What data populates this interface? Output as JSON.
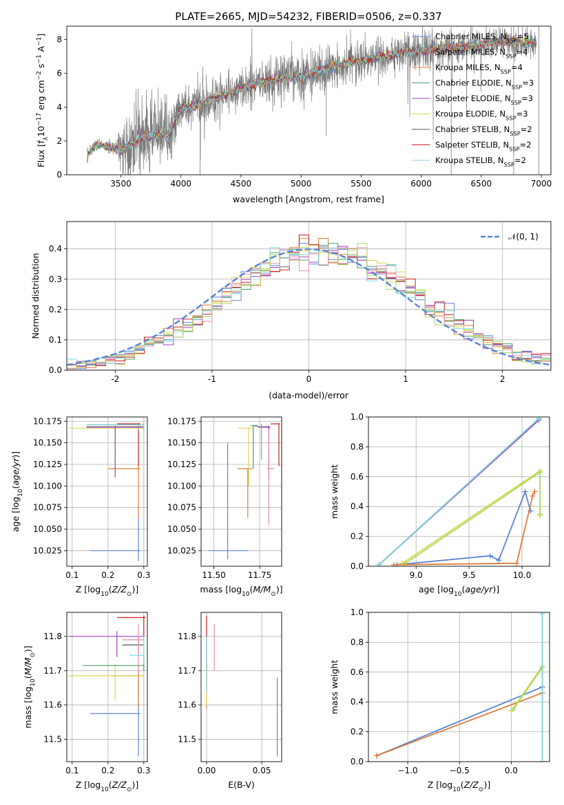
{
  "title": "PLATE=2665, MJD=54232, FIBERID=0506, z=0.337",
  "colors": {
    "chabrier_miles": "#5b84d6",
    "salpeter_miles": "#999999",
    "kroupa_miles": "#e07b39",
    "chabrier_elodie": "#4c9a67",
    "salpeter_elodie": "#9b3fbf",
    "kroupa_elodie": "#d9d94a",
    "chabrier_stelib": "#555555",
    "salpeter_stelib": "#c81e1e",
    "kroupa_stelib": "#80d8e0",
    "pink": "#e88ab0",
    "lime": "#a8d86a",
    "orange": "#e07b39",
    "spectrum_gray": "#7a7a7a",
    "gauss": "#5b84d6"
  },
  "chart_data": [
    {
      "id": "spectrum",
      "type": "line",
      "xlabel": "wavelength [Angstrom, rest frame]",
      "ylabel": "Flux [f_λ 10^-17 erg cm^-2 s^-1 A^-1]",
      "xlim": [
        3050,
        7080
      ],
      "ylim": [
        0,
        8.8
      ],
      "xticks": [
        3500,
        4000,
        4500,
        5000,
        5500,
        6000,
        6500,
        7000
      ],
      "yticks": [
        0,
        2,
        4,
        6,
        8
      ],
      "x_start": 3220,
      "x_end": 6960,
      "legend_position": "top-right",
      "legend": [
        {
          "key": "chabrier_miles",
          "label": "Chabrier MILES, N_SSP=5"
        },
        {
          "key": "salpeter_miles",
          "label": "Salpeter MILES, N_SSP=4"
        },
        {
          "key": "kroupa_miles",
          "label": "Kroupa MILES, N_SSP=4"
        },
        {
          "key": "chabrier_elodie",
          "label": "Chabrier ELODIE, N_SSP=3"
        },
        {
          "key": "salpeter_elodie",
          "label": "Salpeter ELODIE, N_SSP=3"
        },
        {
          "key": "kroupa_elodie",
          "label": "Kroupa ELODIE, N_SSP=3"
        },
        {
          "key": "chabrier_stelib",
          "label": "Chabrier STELIB, N_SSP=2"
        },
        {
          "key": "salpeter_stelib",
          "label": "Salpeter STELIB, N_SSP=2"
        },
        {
          "key": "kroupa_stelib",
          "label": "Kroupa STELIB, N_SSP=2"
        }
      ],
      "continuum": [
        [
          3220,
          1.2
        ],
        [
          3300,
          1.8
        ],
        [
          3500,
          1.5
        ],
        [
          3700,
          2.3
        ],
        [
          3900,
          2.4
        ],
        [
          4000,
          3.9
        ],
        [
          4200,
          4.3
        ],
        [
          4500,
          5.1
        ],
        [
          4800,
          5.7
        ],
        [
          5000,
          5.8
        ],
        [
          5300,
          6.5
        ],
        [
          5600,
          6.9
        ],
        [
          5900,
          7.3
        ],
        [
          6200,
          7.5
        ],
        [
          6500,
          7.7
        ],
        [
          6700,
          7.9
        ],
        [
          6960,
          7.8
        ]
      ],
      "noise_amp": [
        [
          3220,
          0.1
        ],
        [
          3450,
          0.2
        ],
        [
          3550,
          1.2
        ],
        [
          3900,
          1.1
        ],
        [
          4000,
          0.7
        ],
        [
          4500,
          0.6
        ],
        [
          5000,
          0.7
        ],
        [
          5500,
          0.55
        ],
        [
          6000,
          0.5
        ],
        [
          6960,
          0.45
        ]
      ]
    },
    {
      "id": "residuals",
      "type": "step",
      "xlabel": "(data-model)/error",
      "ylabel": "Normed distribution",
      "xlim": [
        -2.5,
        2.5
      ],
      "ylim": [
        0,
        0.49
      ],
      "xticks": [
        -2,
        -1,
        0,
        1,
        2
      ],
      "yticks": [
        0.0,
        0.1,
        0.2,
        0.3,
        0.4
      ],
      "ytick_labels": [
        "0.0",
        "0.1",
        "0.2",
        "0.3",
        "0.4"
      ],
      "bin_width": 0.1,
      "legend_position": "top-right",
      "gauss_label": "𝒩(0, 1)",
      "series_keys": [
        "chabrier_miles",
        "kroupa_miles",
        "chabrier_elodie",
        "salpeter_elodie",
        "kroupa_elodie",
        "salpeter_stelib",
        "kroupa_stelib",
        "pink",
        "lime"
      ]
    },
    {
      "id": "age_vs_Z",
      "type": "errorbar",
      "xlabel": "Z [log10(Z/Z_sun)]",
      "ylabel": "age  [log10(age/yr)]",
      "xlim": [
        0.085,
        0.31
      ],
      "ylim": [
        10.007,
        10.18
      ],
      "xticks": [
        0.1,
        0.2,
        0.3
      ],
      "xtick_labels": [
        "0.1",
        "0.2",
        "0.3"
      ],
      "yticks": [
        10.025,
        10.05,
        10.075,
        10.1,
        10.125,
        10.15,
        10.175
      ],
      "ytick_labels": [
        "10.025",
        "10.050",
        "10.075",
        "10.100",
        "10.125",
        "10.150",
        "10.175"
      ],
      "points": [
        {
          "c": "chabrier_miles",
          "x": 0.285,
          "y": 10.025,
          "xl": 0.15,
          "xh": 0.29,
          "yl": 10.013,
          "yh": 10.063
        },
        {
          "c": "kroupa_miles",
          "x": 0.285,
          "y": 10.12,
          "xl": 0.2,
          "xh": 0.29,
          "yl": 10.063,
          "yh": 10.132
        },
        {
          "c": "salpeter_stelib",
          "x": 0.285,
          "y": 10.172,
          "xl": 0.225,
          "xh": 0.29,
          "yl": 10.123,
          "yh": 10.173
        },
        {
          "c": "salpeter_miles",
          "x": 0.285,
          "y": 10.169,
          "xl": 0.14,
          "xh": 0.3,
          "yl": 10.165,
          "yh": 10.172
        },
        {
          "c": "kroupa_elodie",
          "x": 0.22,
          "y": 10.167,
          "xl": 0.09,
          "xh": 0.3,
          "yl": 10.115,
          "yh": 10.17
        },
        {
          "c": "chabrier_elodie",
          "x": 0.3,
          "y": 10.171,
          "xl": 0.14,
          "xh": 0.3,
          "yl": 10.165,
          "yh": 10.173
        },
        {
          "c": "salpeter_elodie",
          "x": 0.22,
          "y": 10.168,
          "xl": 0.14,
          "xh": 0.3,
          "yl": 10.11,
          "yh": 10.17
        },
        {
          "c": "kroupa_stelib",
          "x": 0.3,
          "y": 10.171,
          "xl": 0.14,
          "xh": 0.3,
          "yl": 10.165,
          "yh": 10.174
        }
      ]
    },
    {
      "id": "age_vs_mass",
      "type": "errorbar",
      "xlabel": "mass [log10(M/M_sun)]",
      "xlim": [
        11.43,
        11.87
      ],
      "ylim": [
        10.007,
        10.18
      ],
      "xticks": [
        11.5,
        11.75
      ],
      "xtick_labels": [
        "11.50",
        "11.75"
      ],
      "yticks": [
        10.025,
        10.05,
        10.075,
        10.1,
        10.125,
        10.15,
        10.175
      ],
      "ytick_labels": [
        "10.025",
        "10.050",
        "10.075",
        "10.100",
        "10.125",
        "10.150",
        "10.175"
      ],
      "points": [
        {
          "c": "chabrier_miles",
          "x": 11.575,
          "y": 10.025,
          "xl": 11.47,
          "xh": 11.685,
          "yl": 10.015,
          "yh": 10.15
        },
        {
          "c": "kroupa_miles",
          "x": 11.685,
          "y": 10.12,
          "xl": 11.63,
          "xh": 11.71,
          "yl": 10.063,
          "yh": 10.12
        },
        {
          "c": "kroupa_elodie",
          "x": 11.69,
          "y": 10.167,
          "xl": 11.63,
          "xh": 11.715,
          "yl": 10.1,
          "yh": 10.168
        },
        {
          "c": "chabrier_elodie",
          "x": 11.715,
          "y": 10.17,
          "xl": 11.7,
          "xh": 11.74,
          "yl": 10.12,
          "yh": 10.17
        },
        {
          "c": "salpeter_elodie",
          "x": 11.8,
          "y": 10.168,
          "xl": 11.74,
          "xh": 11.81,
          "yl": 10.11,
          "yh": 10.17
        },
        {
          "c": "pink",
          "x": 11.8,
          "y": 10.12,
          "xl": 11.79,
          "xh": 11.83,
          "yl": 10.055,
          "yh": 10.165
        },
        {
          "c": "salpeter_stelib",
          "x": 11.855,
          "y": 10.172,
          "xl": 11.81,
          "xh": 11.86,
          "yl": 10.123,
          "yh": 10.173
        },
        {
          "c": "salpeter_miles",
          "x": 11.76,
          "y": 10.169,
          "xl": 11.72,
          "xh": 11.8,
          "yl": 10.13,
          "yh": 10.172
        }
      ]
    },
    {
      "id": "mass_weight_vs_age",
      "type": "line",
      "xlabel": "age  [log10(age/yr)]",
      "ylabel": "mass weight",
      "xlim": [
        8.55,
        10.26
      ],
      "ylim": [
        0,
        1
      ],
      "xticks": [
        9.0,
        9.5,
        10.0
      ],
      "xtick_labels": [
        "9.0",
        "9.5",
        "10.0"
      ],
      "yticks": [
        0,
        0.2,
        0.4,
        0.6,
        0.8,
        1.0
      ],
      "ytick_labels": [
        "0.0",
        "0.2",
        "0.4",
        "0.6",
        "0.8",
        "1.0"
      ],
      "series": [
        {
          "c": "chabrier_miles",
          "x": [
            8.82,
            9.7,
            9.78,
            10.03,
            10.08
          ],
          "y": [
            0.01,
            0.07,
            0.04,
            0.5,
            0.37
          ]
        },
        {
          "c": "kroupa_miles",
          "x": [
            8.79,
            9.95,
            10.1,
            10.12
          ],
          "y": [
            0.01,
            0.02,
            0.47,
            0.5
          ]
        },
        {
          "c": "salpeter_miles",
          "x": [
            8.65,
            10.16,
            10.16
          ],
          "y": [
            0.01,
            0.99,
            0.99
          ]
        },
        {
          "c": "chabrier_elodie",
          "x": [
            8.65,
            10.16
          ],
          "y": [
            0.01,
            0.99
          ]
        },
        {
          "c": "salpeter_elodie",
          "x": [
            8.65,
            10.16
          ],
          "y": [
            0.01,
            0.98
          ]
        },
        {
          "c": "kroupa_elodie",
          "x": [
            8.87,
            10.17,
            10.17
          ],
          "y": [
            0.02,
            0.64,
            0.34
          ]
        },
        {
          "c": "lime",
          "x": [
            8.9,
            10.17,
            10.17
          ],
          "y": [
            0.02,
            0.63,
            0.35
          ]
        },
        {
          "c": "kroupa_stelib",
          "x": [
            8.65,
            10.16
          ],
          "y": [
            0.01,
            0.99
          ]
        }
      ]
    },
    {
      "id": "mass_vs_Z",
      "type": "errorbar",
      "xlabel": "Z [log10(Z/Z_sun)]",
      "ylabel": "mass [log10(M/M_sun)]",
      "xlim": [
        0.085,
        0.31
      ],
      "ylim": [
        11.435,
        11.87
      ],
      "xticks": [
        0.1,
        0.2,
        0.3
      ],
      "xtick_labels": [
        "0.1",
        "0.2",
        "0.3"
      ],
      "yticks": [
        11.5,
        11.6,
        11.7,
        11.8
      ],
      "ytick_labels": [
        "11.5",
        "11.6",
        "11.7",
        "11.8"
      ],
      "points": [
        {
          "c": "chabrier_miles",
          "x": 0.285,
          "y": 11.575,
          "xl": 0.15,
          "xh": 0.29,
          "yl": 11.45,
          "yh": 11.7
        },
        {
          "c": "kroupa_miles",
          "x": 0.285,
          "y": 11.685,
          "xl": 0.21,
          "xh": 0.3,
          "yl": 11.59,
          "yh": 11.72
        },
        {
          "c": "kroupa_elodie",
          "x": 0.22,
          "y": 11.685,
          "xl": 0.09,
          "xh": 0.3,
          "yl": 11.615,
          "yh": 11.72
        },
        {
          "c": "chabrier_elodie",
          "x": 0.3,
          "y": 11.715,
          "xl": 0.13,
          "xh": 0.3,
          "yl": 11.7,
          "yh": 11.74
        },
        {
          "c": "salpeter_elodie",
          "x": 0.225,
          "y": 11.8,
          "xl": 0.09,
          "xh": 0.3,
          "yl": 11.74,
          "yh": 11.815
        },
        {
          "c": "salpeter_stelib",
          "x": 0.3,
          "y": 11.855,
          "xl": 0.225,
          "xh": 0.305,
          "yl": 11.8,
          "yh": 11.86
        },
        {
          "c": "chabrier_stelib",
          "x": 0.285,
          "y": 11.775,
          "xl": 0.24,
          "xh": 0.3,
          "yl": 11.75,
          "yh": 11.8
        },
        {
          "c": "pink",
          "x": 0.285,
          "y": 11.79,
          "xl": 0.24,
          "xh": 0.3,
          "yl": 11.69,
          "yh": 11.835
        },
        {
          "c": "kroupa_stelib",
          "x": 0.3,
          "y": 11.745,
          "xl": 0.26,
          "xh": 0.3,
          "yl": 11.72,
          "yh": 11.8
        }
      ]
    },
    {
      "id": "mass_vs_ebv",
      "type": "errorbar",
      "xlabel": "E(B-V)",
      "xlim": [
        -0.005,
        0.068
      ],
      "ylim": [
        11.435,
        11.87
      ],
      "xticks": [
        0.0,
        0.05
      ],
      "xtick_labels": [
        "0.00",
        "0.05"
      ],
      "yticks": [
        11.5,
        11.6,
        11.7,
        11.8
      ],
      "ytick_labels": [
        "11.5",
        "11.6",
        "11.7",
        "11.8"
      ],
      "points": [
        {
          "c": "chabrier_miles",
          "x": 0.064,
          "y": 11.575,
          "xl": 0.064,
          "xh": 0.064,
          "yl": 11.45,
          "yh": 11.68
        },
        {
          "c": "kroupa_miles",
          "x": 0.0,
          "y": 11.685,
          "xl": 0.0,
          "xh": 0.0,
          "yl": 11.59,
          "yh": 11.72
        },
        {
          "c": "kroupa_elodie",
          "x": 0.0,
          "y": 11.685,
          "xl": 0.0,
          "xh": 0.001,
          "yl": 11.6,
          "yh": 11.72
        },
        {
          "c": "salpeter_stelib",
          "x": 0.0,
          "y": 11.8,
          "xl": 0.0,
          "xh": 0.0,
          "yl": 11.7,
          "yh": 11.86
        },
        {
          "c": "pink",
          "x": 0.007,
          "y": 11.79,
          "xl": 0.007,
          "xh": 0.007,
          "yl": 11.7,
          "yh": 11.835
        },
        {
          "c": "kroupa_stelib",
          "x": 0.0,
          "y": 11.74,
          "xl": 0.0,
          "xh": 0.0,
          "yl": 11.64,
          "yh": 11.8
        }
      ]
    },
    {
      "id": "mass_weight_vs_Z",
      "type": "line",
      "xlabel": "Z [log10(Z/Z_sun)]",
      "ylabel": "mass weight",
      "xlim": [
        -1.38,
        0.37
      ],
      "ylim": [
        0,
        1
      ],
      "xticks": [
        -1.0,
        -0.5,
        0.0
      ],
      "xtick_labels": [
        "−1.0",
        "−0.5",
        "0.0"
      ],
      "yticks": [
        0,
        0.2,
        0.4,
        0.6,
        0.8,
        1.0
      ],
      "ytick_labels": [
        "0.0",
        "0.2",
        "0.4",
        "0.6",
        "0.8",
        "1.0"
      ],
      "series": [
        {
          "c": "chabrier_miles",
          "x": [
            -1.3,
            0.3,
            0.3
          ],
          "y": [
            0.04,
            0.5,
            0.5
          ]
        },
        {
          "c": "kroupa_miles",
          "x": [
            -1.3,
            0.3
          ],
          "y": [
            0.04,
            0.46
          ]
        },
        {
          "c": "kroupa_elodie",
          "x": [
            0.0,
            0.3,
            0.3
          ],
          "y": [
            0.34,
            0.64,
            0.0
          ]
        },
        {
          "c": "lime",
          "x": [
            0.02,
            0.3,
            0.3
          ],
          "y": [
            0.35,
            0.63,
            0.0
          ]
        },
        {
          "c": "salpeter_miles",
          "x": [
            0.3,
            0.3
          ],
          "y": [
            0.0,
            0.99
          ]
        },
        {
          "c": "kroupa_stelib",
          "x": [
            0.3,
            0.3
          ],
          "y": [
            0.0,
            0.99
          ]
        }
      ]
    }
  ]
}
